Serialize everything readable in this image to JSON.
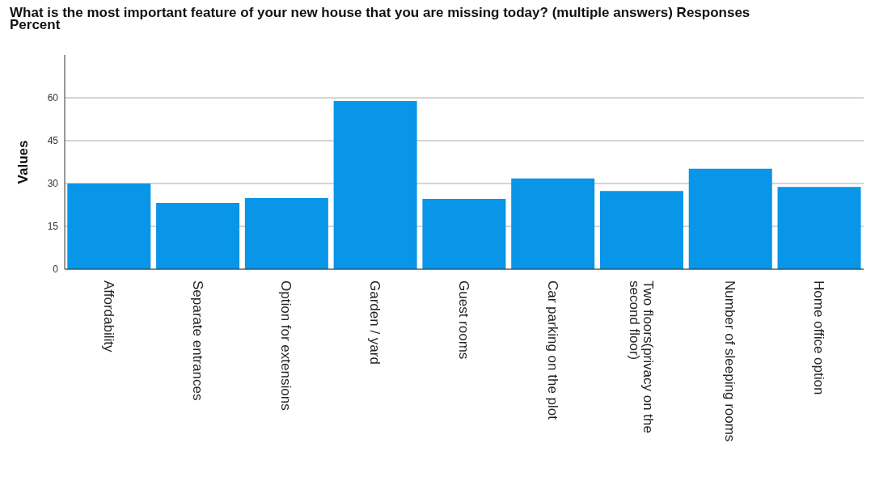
{
  "chart_data": {
    "type": "bar",
    "title": "What is the most important feature of your new house that you are missing today? (multiple answers) Responses Percent",
    "ylabel": "Values",
    "categories": [
      "Affordability",
      "Separate entrances",
      "Option for extensions",
      "Garden / yard",
      "Guest rooms",
      "Car parking on the plot",
      "Two floors(privacy on the second floor)",
      "Number of sleeping rooms",
      "Home office option"
    ],
    "values": [
      30,
      23.2,
      24.9,
      58.9,
      24.6,
      31.8,
      27.4,
      35.2,
      28.8
    ],
    "color": "#0995e8",
    "ylim": [
      0,
      75
    ],
    "yticks": [
      0,
      15,
      30,
      45,
      60
    ],
    "grid": "y"
  }
}
